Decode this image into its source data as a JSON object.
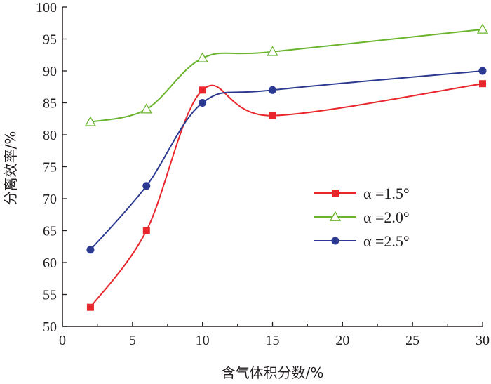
{
  "chart_data": {
    "type": "line",
    "xlabel": "含气体积分数/%",
    "ylabel": "分离效率/%",
    "xlim": [
      0,
      30
    ],
    "ylim": [
      50,
      100
    ],
    "x_ticks": [
      "0",
      "5",
      "10",
      "15",
      "20",
      "25",
      "30"
    ],
    "y_ticks": [
      "50",
      "55",
      "60",
      "65",
      "70",
      "75",
      "80",
      "85",
      "90",
      "95",
      "100"
    ],
    "grid": false,
    "legend_position": "right",
    "series": [
      {
        "name": "α =1.5°",
        "color": "#e8262b",
        "marker": "filled-square",
        "x": [
          2,
          6,
          10,
          15,
          30
        ],
        "y": [
          53,
          65,
          87,
          83,
          88
        ]
      },
      {
        "name": "α =2.0°",
        "color": "#6ab42d",
        "marker": "hollow-triangle",
        "x": [
          2,
          6,
          10,
          15,
          30
        ],
        "y": [
          82,
          84,
          92,
          93,
          96.5
        ]
      },
      {
        "name": "α =2.5°",
        "color": "#2b3990",
        "marker": "filled-circle",
        "x": [
          2,
          6,
          10,
          15,
          30
        ],
        "y": [
          62,
          72,
          85,
          87,
          90
        ]
      }
    ]
  }
}
